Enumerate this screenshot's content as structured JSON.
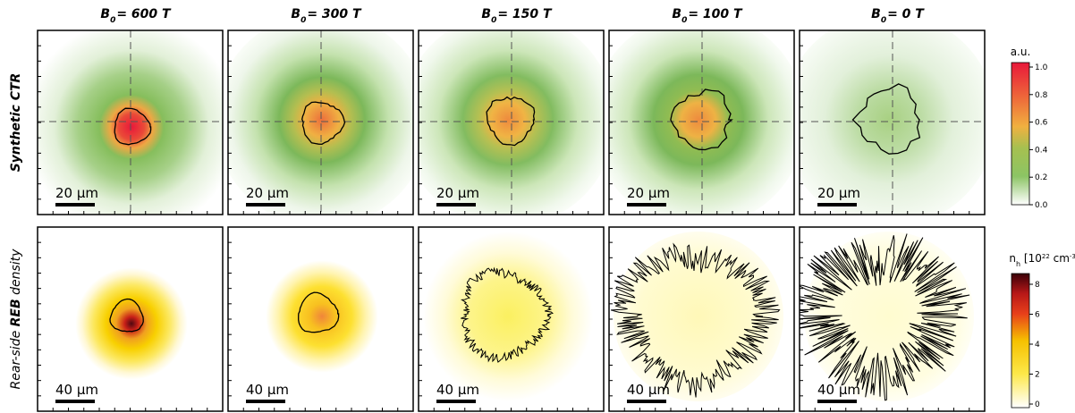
{
  "columns": [
    {
      "title": {
        "symbol": "B",
        "sub": "0",
        "rest": "= 600 T"
      }
    },
    {
      "title": {
        "symbol": "B",
        "sub": "0",
        "rest": "= 300 T"
      }
    },
    {
      "title": {
        "symbol": "B",
        "sub": "0",
        "rest": "= 150 T"
      }
    },
    {
      "title": {
        "symbol": "B",
        "sub": "0",
        "rest": "= 100 T"
      }
    },
    {
      "title": {
        "symbol": "B",
        "sub": "0",
        "rest": "= 0 T"
      }
    }
  ],
  "rows": [
    {
      "label": [
        "Synthetic CTR"
      ],
      "scale_bar": "20 µm"
    },
    {
      "label": [
        "Rear-side ",
        "REB",
        " density"
      ],
      "scale_bar": "40 µm"
    }
  ],
  "colorbars": [
    {
      "title": [
        "a.u."
      ],
      "ticks": [
        {
          "value": 0,
          "label": "0.0"
        },
        {
          "value": 0.2,
          "label": "0.2"
        },
        {
          "value": 0.4,
          "label": "0.4"
        },
        {
          "value": 0.6,
          "label": "0.6"
        },
        {
          "value": 0.8,
          "label": "0.8"
        },
        {
          "value": 1,
          "label": "1.0"
        }
      ]
    },
    {
      "title": [
        "n",
        "h",
        " [10",
        "22",
        " cm",
        "-3",
        "]"
      ],
      "ticks": [
        0,
        2,
        4,
        6,
        8
      ]
    }
  ]
}
